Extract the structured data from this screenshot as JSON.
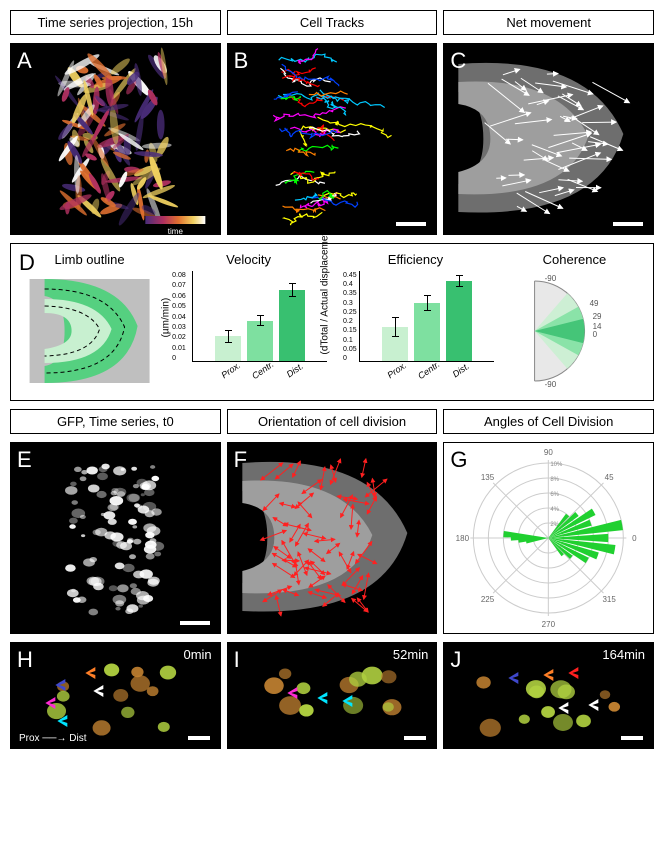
{
  "row1": {
    "labels": [
      "Time series projection,  15h",
      "Cell Tracks",
      "Net movement"
    ],
    "letters": [
      "A",
      "B",
      "C"
    ],
    "scalebar_width": 30,
    "time_gradient": [
      "#4a2d7a",
      "#b03060",
      "#e07030",
      "#f0d060",
      "#ffffff"
    ],
    "track_colors": [
      "#ff0000",
      "#00c8ff",
      "#ffff00",
      "#ff00ff",
      "#00ff00",
      "#ffffff",
      "#0040ff",
      "#ff8000"
    ],
    "arrow_color": "#ffffff",
    "limb_fill": "#9e9e9e",
    "limb_fill_dark": "#6e6e6e"
  },
  "panelD": {
    "letter": "D",
    "limb": {
      "title": "Limb outline",
      "colors": [
        "#c8f0d0",
        "#55d080"
      ],
      "bg": "#bfbfbf"
    },
    "velocity": {
      "title": "Velocity",
      "ylabel": "(µm/min)",
      "ticks": [
        0,
        0.01,
        0.02,
        0.03,
        0.04,
        0.05,
        0.06,
        0.07,
        0.08
      ],
      "cats": [
        "Prox.",
        "Centr.",
        "Dist."
      ],
      "vals": [
        0.022,
        0.036,
        0.063
      ],
      "errs": [
        0.006,
        0.005,
        0.006
      ],
      "ymax": 0.08,
      "colors": [
        "#c8f0d0",
        "#7ee0a0",
        "#38c070"
      ]
    },
    "efficiency": {
      "title": "Efficiency",
      "ylabel": "(dTotal / Actual displacemet)",
      "ticks": [
        0,
        0.05,
        0.1,
        0.15,
        0.2,
        0.25,
        0.3,
        0.35,
        0.4,
        0.45
      ],
      "cats": [
        "Prox.",
        "Centr.",
        "Dist."
      ],
      "vals": [
        0.17,
        0.29,
        0.4
      ],
      "errs": [
        0.05,
        0.04,
        0.03
      ],
      "ymax": 0.45,
      "colors": [
        "#c8f0d0",
        "#7ee0a0",
        "#38c070"
      ]
    },
    "coherence": {
      "title": "Coherence",
      "angle_labels": [
        "-90",
        "49",
        "29",
        "14",
        "0",
        "-90"
      ],
      "colors": [
        "#c8f0d0",
        "#7ee0a0",
        "#38c070"
      ]
    }
  },
  "row3": {
    "labels": [
      "GFP, Time series, t0",
      "Orientation of cell division",
      "Angles of Cell Division"
    ],
    "letters": [
      "E",
      "F",
      "G"
    ],
    "scalebar_width": 30,
    "arrow_color": "#ff2020",
    "polar": {
      "angles": [
        0,
        45,
        90,
        135,
        180,
        225,
        270,
        315
      ],
      "rings": [
        "2%",
        "4%",
        "6%",
        "8%",
        "10%"
      ],
      "bin_color": "#20d030",
      "bins": [
        [
          0,
          8
        ],
        [
          10,
          10
        ],
        [
          20,
          6
        ],
        [
          30,
          7
        ],
        [
          40,
          5
        ],
        [
          50,
          4
        ],
        [
          -10,
          9
        ],
        [
          -20,
          7
        ],
        [
          -30,
          6
        ],
        [
          -40,
          4
        ],
        [
          -50,
          3
        ],
        [
          175,
          6
        ],
        [
          180,
          5
        ],
        [
          185,
          4
        ],
        [
          190,
          3
        ]
      ]
    }
  },
  "row4": {
    "letters": [
      "H",
      "I",
      "J"
    ],
    "times": [
      "0min",
      "52min",
      "164min"
    ],
    "scalebar_width": 22,
    "proxdist": "Prox ──→ Dist",
    "arrow_colors": [
      "#ff7f27",
      "#3f48cc",
      "#ff2ad4",
      "#ffffff",
      "#00e5ff",
      "#ff2020"
    ],
    "cell_color": "#b0d040",
    "cell_orange": "#c08030"
  }
}
